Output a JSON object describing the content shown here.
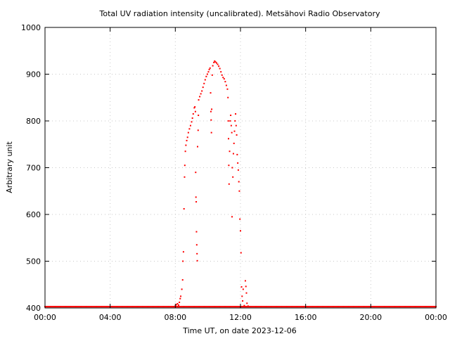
{
  "chart_data": {
    "type": "scatter",
    "title": "Total UV radiation intensity (uncalibrated). Metsähovi Radio Observatory",
    "xlabel": "Time UT, on date 2023-12-06",
    "ylabel": "Arbitrary unit",
    "xlim": [
      "00:00",
      "24:00"
    ],
    "ylim": [
      400,
      1000
    ],
    "x_tick_labels": [
      "00:00",
      "04:00",
      "08:00",
      "12:00",
      "16:00",
      "20:00",
      "00:00"
    ],
    "y_tick_labels": [
      "400",
      "500",
      "600",
      "700",
      "800",
      "900",
      "1000"
    ],
    "grid": true,
    "point_color": "#ff0000",
    "baseline_value": 402,
    "baseline_x_range": [
      "00:00",
      "24:00"
    ],
    "series": [
      {
        "points": [
          [
            "08:00",
            404
          ],
          [
            "08:04",
            407
          ],
          [
            "08:08",
            409
          ],
          [
            "08:12",
            406
          ],
          [
            "08:15",
            412
          ],
          [
            "08:18",
            420
          ],
          [
            "08:20",
            425
          ],
          [
            "08:24",
            440
          ],
          [
            "08:27",
            460
          ],
          [
            "08:28",
            500
          ],
          [
            "08:30",
            520
          ],
          [
            "08:32",
            612
          ],
          [
            "08:34",
            680
          ],
          [
            "08:35",
            705
          ],
          [
            "08:37",
            735
          ],
          [
            "08:39",
            748
          ],
          [
            "08:42",
            758
          ],
          [
            "08:45",
            765
          ],
          [
            "08:48",
            775
          ],
          [
            "08:52",
            783
          ],
          [
            "08:56",
            790
          ],
          [
            "09:00",
            798
          ],
          [
            "09:03",
            806
          ],
          [
            "09:06",
            815
          ],
          [
            "09:10",
            828
          ],
          [
            "09:12",
            830
          ],
          [
            "09:14",
            820
          ],
          [
            "09:15",
            690
          ],
          [
            "09:16",
            637
          ],
          [
            "09:17",
            627
          ],
          [
            "09:18",
            563
          ],
          [
            "09:19",
            535
          ],
          [
            "09:20",
            516
          ],
          [
            "09:21",
            501
          ],
          [
            "09:22",
            745
          ],
          [
            "09:24",
            780
          ],
          [
            "09:25",
            812
          ],
          [
            "09:26",
            845
          ],
          [
            "09:30",
            852
          ],
          [
            "09:34",
            858
          ],
          [
            "09:38",
            864
          ],
          [
            "09:42",
            872
          ],
          [
            "09:46",
            880
          ],
          [
            "09:50",
            888
          ],
          [
            "09:54",
            895
          ],
          [
            "09:58",
            900
          ],
          [
            "10:02",
            905
          ],
          [
            "10:05",
            910
          ],
          [
            "10:08",
            913
          ],
          [
            "10:10",
            860
          ],
          [
            "10:11",
            820
          ],
          [
            "10:12",
            802
          ],
          [
            "10:13",
            775
          ],
          [
            "10:14",
            825
          ],
          [
            "10:16",
            898
          ],
          [
            "10:18",
            918
          ],
          [
            "10:22",
            925
          ],
          [
            "10:25",
            928
          ],
          [
            "10:28",
            926
          ],
          [
            "10:32",
            924
          ],
          [
            "10:36",
            921
          ],
          [
            "10:40",
            917
          ],
          [
            "10:44",
            912
          ],
          [
            "10:48",
            905
          ],
          [
            "10:52",
            898
          ],
          [
            "10:56",
            893
          ],
          [
            "11:00",
            890
          ],
          [
            "11:04",
            884
          ],
          [
            "11:08",
            876
          ],
          [
            "11:12",
            868
          ],
          [
            "11:14",
            850
          ],
          [
            "11:15",
            800
          ],
          [
            "11:16",
            762
          ],
          [
            "11:17",
            705
          ],
          [
            "11:18",
            665
          ],
          [
            "11:20",
            735
          ],
          [
            "11:22",
            800
          ],
          [
            "11:24",
            812
          ],
          [
            "11:26",
            790
          ],
          [
            "11:28",
            775
          ],
          [
            "11:29",
            595
          ],
          [
            "11:30",
            700
          ],
          [
            "11:32",
            680
          ],
          [
            "11:34",
            730
          ],
          [
            "11:36",
            752
          ],
          [
            "11:38",
            778
          ],
          [
            "11:40",
            800
          ],
          [
            "11:42",
            815
          ],
          [
            "11:44",
            790
          ],
          [
            "11:46",
            770
          ],
          [
            "11:48",
            728
          ],
          [
            "11:50",
            710
          ],
          [
            "11:52",
            695
          ],
          [
            "11:54",
            670
          ],
          [
            "11:56",
            650
          ],
          [
            "11:58",
            590
          ],
          [
            "12:00",
            565
          ],
          [
            "12:02",
            518
          ],
          [
            "12:04",
            445
          ],
          [
            "12:06",
            425
          ],
          [
            "12:08",
            415
          ],
          [
            "12:10",
            440
          ],
          [
            "12:14",
            405
          ],
          [
            "12:18",
            458
          ],
          [
            "12:20",
            446
          ],
          [
            "12:22",
            432
          ],
          [
            "12:24",
            410
          ],
          [
            "12:28",
            404
          ]
        ]
      }
    ]
  }
}
